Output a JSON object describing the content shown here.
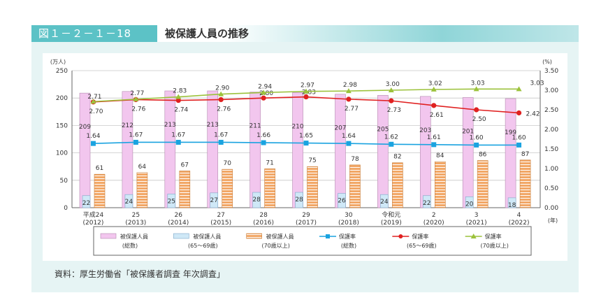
{
  "header": {
    "figure_number": "図１－２－１－18",
    "title": "被保護人員の推移"
  },
  "source": "資料：厚生労働省「被保護者調査 年次調査」",
  "chart_data": {
    "type": "bar",
    "categories": [
      [
        "平成24",
        "(2012)"
      ],
      [
        "25",
        "(2013)"
      ],
      [
        "26",
        "(2014)"
      ],
      [
        "27",
        "(2015)"
      ],
      [
        "28",
        "(2016)"
      ],
      [
        "29",
        "(2017)"
      ],
      [
        "30",
        "(2018)"
      ],
      [
        "令和元",
        "(2019)"
      ],
      [
        "2",
        "(2020)"
      ],
      [
        "3",
        "(2021)"
      ],
      [
        "4",
        "(2022)"
      ]
    ],
    "y_left_unit": "(万人)",
    "y_right_unit": "(%)",
    "x_unit": "(年)",
    "ylim_left": [
      0,
      250
    ],
    "ylim_right": [
      0,
      3.5
    ],
    "y_left_ticks": [
      0,
      50,
      100,
      150,
      200,
      250
    ],
    "y_right_ticks": [
      "0.00",
      "0.50",
      "1.00",
      "1.50",
      "2.00",
      "2.50",
      "3.00",
      "3.50"
    ],
    "bar_series": [
      {
        "name": [
          "被保護人員",
          "(総数)"
        ],
        "color": "#f2c6ee",
        "values": [
          209,
          212,
          213,
          213,
          211,
          210,
          207,
          205,
          203,
          201,
          199
        ]
      },
      {
        "name": [
          "被保護人員",
          "(65～69歳)"
        ],
        "color": "#cfe8f7",
        "values": [
          22,
          24,
          25,
          27,
          28,
          28,
          26,
          24,
          22,
          20,
          18
        ]
      },
      {
        "name": [
          "被保護人員",
          "(70歳以上)"
        ],
        "color": "#f2a766",
        "values": [
          61,
          64,
          67,
          70,
          71,
          75,
          78,
          82,
          84,
          86,
          87
        ]
      }
    ],
    "line_series": [
      {
        "name": [
          "保護率",
          "(総数)"
        ],
        "color": "#1aa3e0",
        "marker": "square",
        "values": [
          1.64,
          1.67,
          1.67,
          1.67,
          1.66,
          1.65,
          1.64,
          1.62,
          1.61,
          1.6,
          1.6
        ]
      },
      {
        "name": [
          "保護率",
          "(65～69歳)"
        ],
        "color": "#e02020",
        "marker": "circle",
        "values": [
          2.7,
          2.76,
          2.74,
          2.76,
          2.8,
          2.83,
          2.77,
          2.73,
          2.61,
          2.5,
          2.42
        ]
      },
      {
        "name": [
          "保護率",
          "(70歳以上)"
        ],
        "color": "#9cc23c",
        "marker": "triangle",
        "values": [
          2.71,
          2.77,
          2.83,
          2.9,
          2.94,
          2.97,
          2.98,
          3.0,
          3.02,
          3.03,
          3.03
        ]
      }
    ]
  }
}
